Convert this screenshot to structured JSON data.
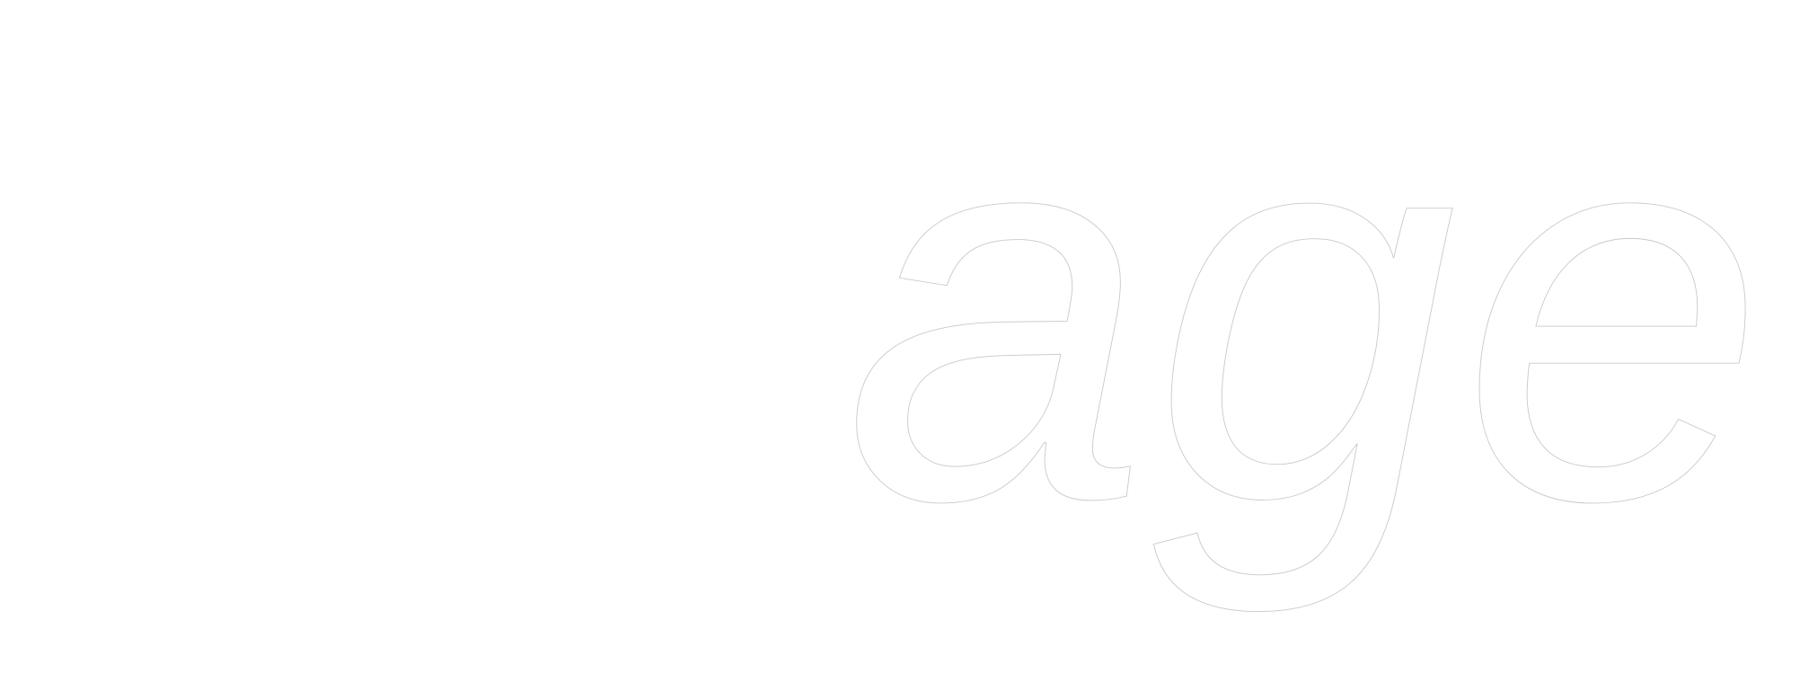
{
  "word_mark": {
    "text": "age",
    "fill_color": "#ffffff",
    "outline_color": "#c9c9c9"
  },
  "background_color": "#ffffff"
}
